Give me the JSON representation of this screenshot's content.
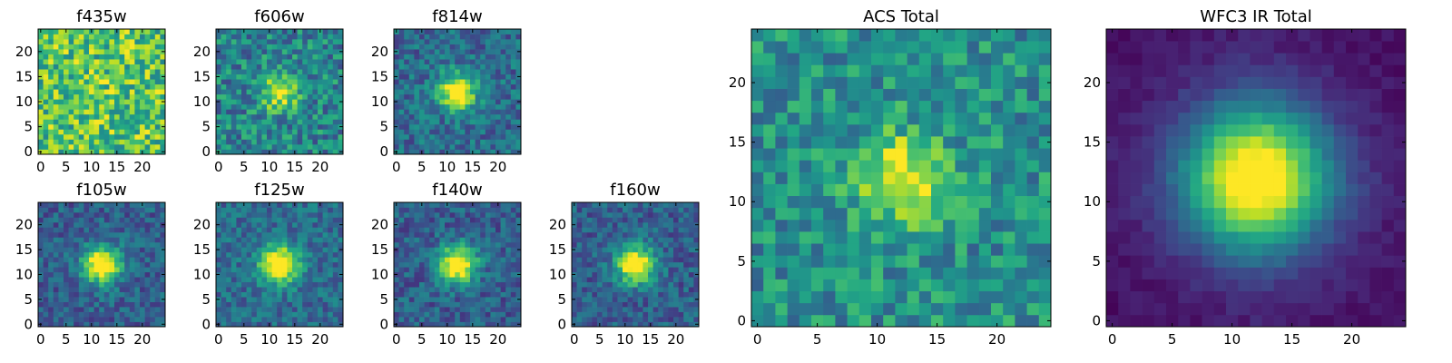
{
  "chart_data": {
    "type": "heatmap",
    "colormap": "viridis",
    "grid": false,
    "panels": [
      {
        "title": "f435w",
        "xlim": [
          0,
          24
        ],
        "ylim": [
          0,
          24
        ],
        "xticks": [
          0,
          5,
          10,
          15,
          20
        ],
        "yticks": [
          0,
          5,
          10,
          15,
          20
        ],
        "source_peak": 0.05,
        "noise": 0.55,
        "base": 0.72
      },
      {
        "title": "f606w",
        "xlim": [
          0,
          24
        ],
        "ylim": [
          0,
          24
        ],
        "xticks": [
          0,
          5,
          10,
          15,
          20
        ],
        "yticks": [
          0,
          5,
          10,
          15,
          20
        ],
        "source_peak": 0.55,
        "noise": 0.45,
        "base": 0.45
      },
      {
        "title": "f814w",
        "xlim": [
          0,
          24
        ],
        "ylim": [
          0,
          24
        ],
        "xticks": [
          0,
          5,
          10,
          15,
          20
        ],
        "yticks": [
          0,
          5,
          10,
          15,
          20
        ],
        "source_peak": 0.75,
        "noise": 0.35,
        "base": 0.35
      },
      {
        "title": "f105w",
        "xlim": [
          0,
          24
        ],
        "ylim": [
          0,
          24
        ],
        "xticks": [
          0,
          5,
          10,
          15,
          20
        ],
        "yticks": [
          0,
          5,
          10,
          15,
          20
        ],
        "source_peak": 0.85,
        "noise": 0.3,
        "base": 0.3
      },
      {
        "title": "f125w",
        "xlim": [
          0,
          24
        ],
        "ylim": [
          0,
          24
        ],
        "xticks": [
          0,
          5,
          10,
          15,
          20
        ],
        "yticks": [
          0,
          5,
          10,
          15,
          20
        ],
        "source_peak": 0.85,
        "noise": 0.3,
        "base": 0.35
      },
      {
        "title": "f140w",
        "xlim": [
          0,
          24
        ],
        "ylim": [
          0,
          24
        ],
        "xticks": [
          0,
          5,
          10,
          15,
          20
        ],
        "yticks": [
          0,
          5,
          10,
          15,
          20
        ],
        "source_peak": 0.85,
        "noise": 0.3,
        "base": 0.3
      },
      {
        "title": "f160w",
        "xlim": [
          0,
          24
        ],
        "ylim": [
          0,
          24
        ],
        "xticks": [
          0,
          5,
          10,
          15,
          20
        ],
        "yticks": [
          0,
          5,
          10,
          15,
          20
        ],
        "source_peak": 0.85,
        "noise": 0.3,
        "base": 0.3
      },
      {
        "title": "ACS Total",
        "xlim": [
          0,
          24
        ],
        "ylim": [
          0,
          24
        ],
        "xticks": [
          0,
          5,
          10,
          15,
          20
        ],
        "yticks": [
          0,
          5,
          10,
          15,
          20
        ],
        "source_peak": 0.5,
        "noise": 0.4,
        "base": 0.5
      },
      {
        "title": "WFC3 IR Total",
        "xlim": [
          0,
          24
        ],
        "ylim": [
          0,
          24
        ],
        "xticks": [
          0,
          5,
          10,
          15,
          20
        ],
        "yticks": [
          0,
          5,
          10,
          15,
          20
        ],
        "source_peak": 1.0,
        "noise": 0.08,
        "base": 0.12
      }
    ],
    "source_center": [
      12,
      12
    ]
  }
}
